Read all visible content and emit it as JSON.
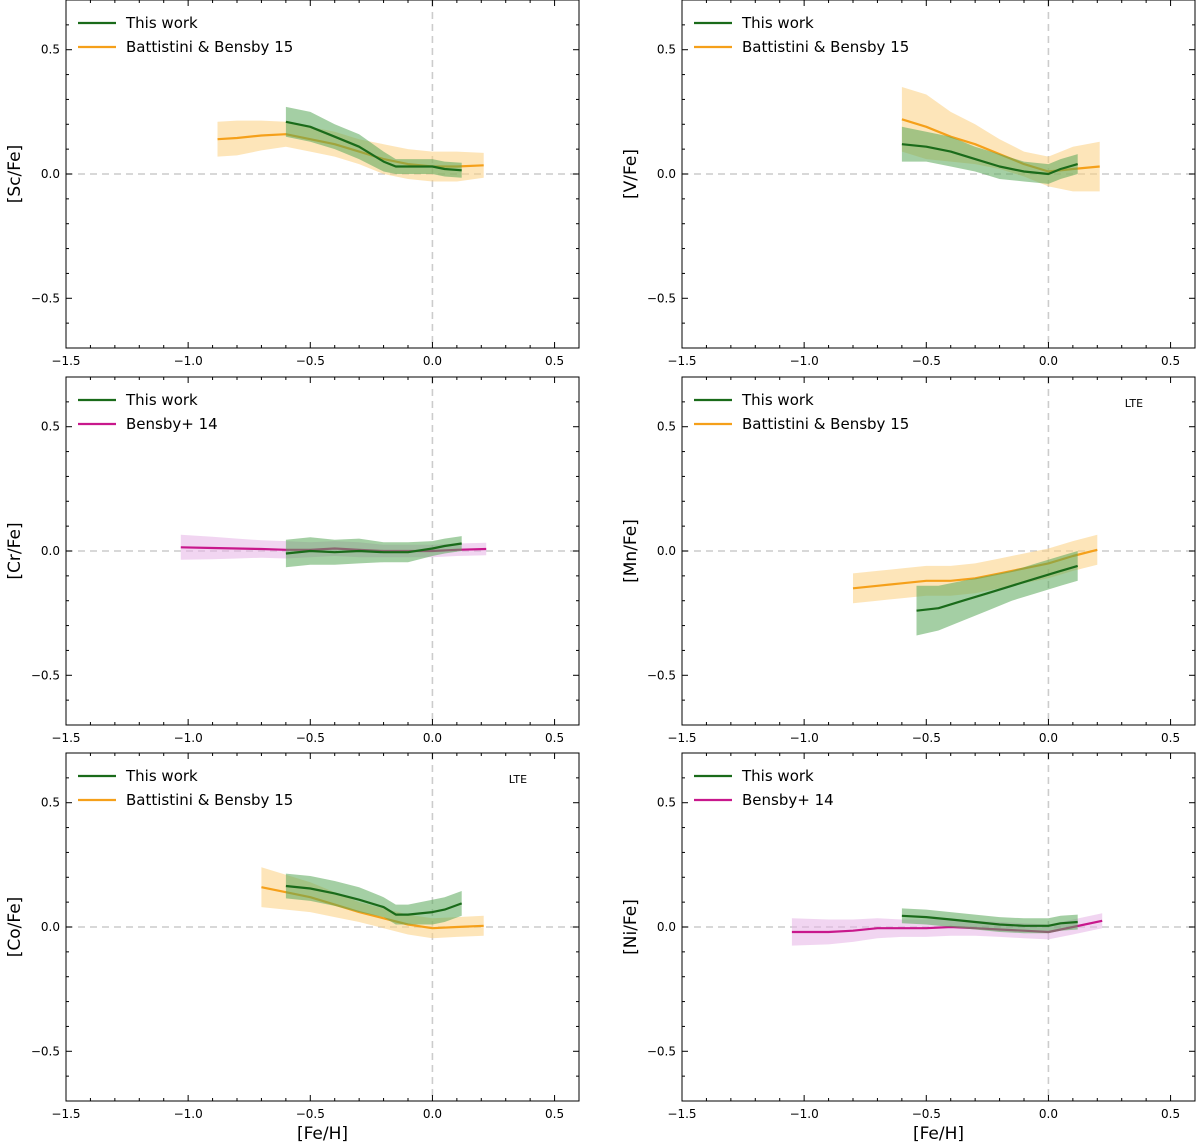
{
  "colors": {
    "this_work": "#1a6b1a",
    "this_work_band": "#5aa85a",
    "battistini": "#f5a01a",
    "battistini_band": "#fbcf80",
    "bensby": "#c8188c",
    "bensby_band": "#e6b3e6",
    "reference_line": "#cccccc"
  },
  "chart_data": [
    {
      "type": "line",
      "ylabel": "[Sc/Fe]",
      "xlabel": "",
      "xlim": [
        -1.5,
        0.6
      ],
      "ylim": [
        -0.7,
        0.7
      ],
      "xticks": [
        "−1.5",
        "−1.0",
        "−0.5",
        "0.0",
        "0.5"
      ],
      "yticks": [
        "−0.5",
        "0.0",
        "0.5"
      ],
      "annotation": "",
      "legend": [
        "This work",
        "Battistini & Bensby 15"
      ],
      "series": [
        {
          "name": "This work",
          "key": "this_work",
          "x": [
            -0.6,
            -0.5,
            -0.4,
            -0.3,
            -0.2,
            -0.15,
            -0.1,
            0.0,
            0.05,
            0.12
          ],
          "y": [
            0.21,
            0.19,
            0.15,
            0.11,
            0.05,
            0.03,
            0.03,
            0.03,
            0.02,
            0.015
          ],
          "err": [
            0.06,
            0.06,
            0.05,
            0.05,
            0.04,
            0.03,
            0.03,
            0.03,
            0.03,
            0.03
          ]
        },
        {
          "name": "Battistini & Bensby 15",
          "key": "battistini",
          "x": [
            -0.88,
            -0.8,
            -0.7,
            -0.6,
            -0.5,
            -0.4,
            -0.3,
            -0.2,
            -0.1,
            0.0,
            0.1,
            0.21
          ],
          "y": [
            0.14,
            0.145,
            0.155,
            0.16,
            0.14,
            0.12,
            0.09,
            0.06,
            0.04,
            0.03,
            0.03,
            0.035
          ],
          "err": [
            0.07,
            0.07,
            0.06,
            0.05,
            0.05,
            0.05,
            0.05,
            0.06,
            0.06,
            0.06,
            0.06,
            0.05
          ]
        }
      ]
    },
    {
      "type": "line",
      "ylabel": "[V/Fe]",
      "xlabel": "",
      "xlim": [
        -1.5,
        0.6
      ],
      "ylim": [
        -0.7,
        0.7
      ],
      "xticks": [
        "−1.5",
        "−1.0",
        "−0.5",
        "0.0",
        "0.5"
      ],
      "yticks": [
        "−0.5",
        "0.0",
        "0.5"
      ],
      "annotation": "",
      "legend": [
        "This work",
        "Battistini & Bensby 15"
      ],
      "series": [
        {
          "name": "This work",
          "key": "this_work",
          "x": [
            -0.6,
            -0.5,
            -0.4,
            -0.3,
            -0.2,
            -0.1,
            0.0,
            0.05,
            0.12
          ],
          "y": [
            0.12,
            0.11,
            0.09,
            0.06,
            0.03,
            0.01,
            0.0,
            0.02,
            0.04
          ],
          "err": [
            0.07,
            0.06,
            0.06,
            0.05,
            0.05,
            0.04,
            0.04,
            0.04,
            0.04
          ]
        },
        {
          "name": "Battistini & Bensby 15",
          "key": "battistini",
          "x": [
            -0.6,
            -0.5,
            -0.4,
            -0.3,
            -0.2,
            -0.1,
            0.0,
            0.1,
            0.21
          ],
          "y": [
            0.22,
            0.19,
            0.15,
            0.12,
            0.08,
            0.04,
            0.01,
            0.02,
            0.03
          ],
          "err": [
            0.13,
            0.13,
            0.1,
            0.08,
            0.06,
            0.05,
            0.06,
            0.09,
            0.1
          ]
        }
      ]
    },
    {
      "type": "line",
      "ylabel": "[Cr/Fe]",
      "xlabel": "",
      "xlim": [
        -1.5,
        0.6
      ],
      "ylim": [
        -0.7,
        0.7
      ],
      "xticks": [
        "−1.5",
        "−1.0",
        "−0.5",
        "0.0",
        "0.5"
      ],
      "yticks": [
        "−0.5",
        "0.0",
        "0.5"
      ],
      "annotation": "",
      "legend": [
        "This work",
        "Bensby+ 14"
      ],
      "series": [
        {
          "name": "This work",
          "key": "this_work",
          "x": [
            -0.6,
            -0.5,
            -0.4,
            -0.3,
            -0.2,
            -0.1,
            0.0,
            0.05,
            0.12
          ],
          "y": [
            -0.01,
            0.0,
            -0.005,
            0.0,
            -0.005,
            -0.005,
            0.01,
            0.02,
            0.03
          ],
          "err": [
            0.055,
            0.055,
            0.05,
            0.05,
            0.04,
            0.04,
            0.03,
            0.03,
            0.03
          ]
        },
        {
          "name": "Bensby+ 14",
          "key": "bensby",
          "x": [
            -1.03,
            -0.9,
            -0.8,
            -0.7,
            -0.6,
            -0.5,
            -0.4,
            -0.3,
            -0.2,
            -0.1,
            0.0,
            0.1,
            0.22
          ],
          "y": [
            0.015,
            0.012,
            0.01,
            0.008,
            0.005,
            0.005,
            0.01,
            0.005,
            0.0,
            0.0,
            0.0,
            0.005,
            0.008
          ],
          "err": [
            0.05,
            0.045,
            0.04,
            0.035,
            0.035,
            0.03,
            0.03,
            0.03,
            0.025,
            0.025,
            0.025,
            0.025,
            0.025
          ]
        }
      ]
    },
    {
      "type": "line",
      "ylabel": "[Mn/Fe]",
      "xlabel": "",
      "xlim": [
        -1.5,
        0.6
      ],
      "ylim": [
        -0.7,
        0.7
      ],
      "xticks": [
        "−1.5",
        "−1.0",
        "−0.5",
        "0.0",
        "0.5"
      ],
      "yticks": [
        "−0.5",
        "0.0",
        "0.5"
      ],
      "annotation": "LTE",
      "legend": [
        "This work",
        "Battistini & Bensby 15"
      ],
      "series": [
        {
          "name": "This work",
          "key": "this_work",
          "x": [
            -0.54,
            -0.45,
            -0.35,
            -0.25,
            -0.15,
            -0.05,
            0.05,
            0.12
          ],
          "y": [
            -0.24,
            -0.23,
            -0.2,
            -0.17,
            -0.14,
            -0.11,
            -0.08,
            -0.06
          ],
          "err": [
            0.1,
            0.09,
            0.08,
            0.07,
            0.06,
            0.06,
            0.06,
            0.06
          ]
        },
        {
          "name": "Battistini & Bensby 15",
          "key": "battistini",
          "x": [
            -0.8,
            -0.7,
            -0.6,
            -0.5,
            -0.4,
            -0.3,
            -0.2,
            -0.1,
            0.0,
            0.1,
            0.2
          ],
          "y": [
            -0.15,
            -0.14,
            -0.13,
            -0.12,
            -0.12,
            -0.11,
            -0.09,
            -0.07,
            -0.05,
            -0.02,
            0.005
          ],
          "err": [
            0.06,
            0.06,
            0.06,
            0.06,
            0.06,
            0.06,
            0.06,
            0.06,
            0.06,
            0.06,
            0.06
          ]
        }
      ]
    },
    {
      "type": "line",
      "ylabel": "[Co/Fe]",
      "xlabel": "[Fe/H]",
      "xlim": [
        -1.5,
        0.6
      ],
      "ylim": [
        -0.7,
        0.7
      ],
      "xticks": [
        "−1.5",
        "−1.0",
        "−0.5",
        "0.0",
        "0.5"
      ],
      "yticks": [
        "−0.5",
        "0.0",
        "0.5"
      ],
      "annotation": "LTE",
      "legend": [
        "This work",
        "Battistini & Bensby 15"
      ],
      "series": [
        {
          "name": "This work",
          "key": "this_work",
          "x": [
            -0.6,
            -0.5,
            -0.4,
            -0.3,
            -0.2,
            -0.15,
            -0.1,
            0.0,
            0.05,
            0.12
          ],
          "y": [
            0.165,
            0.155,
            0.135,
            0.11,
            0.08,
            0.05,
            0.05,
            0.06,
            0.07,
            0.095
          ],
          "err": [
            0.05,
            0.05,
            0.05,
            0.05,
            0.04,
            0.04,
            0.04,
            0.05,
            0.05,
            0.05
          ]
        },
        {
          "name": "Battistini & Bensby 15",
          "key": "battistini",
          "x": [
            -0.7,
            -0.6,
            -0.5,
            -0.4,
            -0.3,
            -0.2,
            -0.1,
            0.0,
            0.1,
            0.21
          ],
          "y": [
            0.16,
            0.14,
            0.12,
            0.09,
            0.06,
            0.035,
            0.01,
            -0.005,
            0.0,
            0.005
          ],
          "err": [
            0.08,
            0.07,
            0.06,
            0.05,
            0.04,
            0.04,
            0.04,
            0.04,
            0.04,
            0.04
          ]
        }
      ]
    },
    {
      "type": "line",
      "ylabel": "[Ni/Fe]",
      "xlabel": "[Fe/H]",
      "xlim": [
        -1.5,
        0.6
      ],
      "ylim": [
        -0.7,
        0.7
      ],
      "xticks": [
        "−1.5",
        "−1.0",
        "−0.5",
        "0.0",
        "0.5"
      ],
      "yticks": [
        "−0.5",
        "0.0",
        "0.5"
      ],
      "annotation": "",
      "legend": [
        "This work",
        "Bensby+ 14"
      ],
      "series": [
        {
          "name": "This work",
          "key": "this_work",
          "x": [
            -0.6,
            -0.5,
            -0.4,
            -0.3,
            -0.2,
            -0.1,
            0.0,
            0.05,
            0.12
          ],
          "y": [
            0.045,
            0.04,
            0.03,
            0.02,
            0.01,
            0.005,
            0.005,
            0.015,
            0.02
          ],
          "err": [
            0.03,
            0.03,
            0.03,
            0.03,
            0.03,
            0.03,
            0.03,
            0.03,
            0.03
          ]
        },
        {
          "name": "Bensby+ 14",
          "key": "bensby",
          "x": [
            -1.05,
            -0.9,
            -0.8,
            -0.7,
            -0.6,
            -0.5,
            -0.4,
            -0.3,
            -0.2,
            -0.1,
            0.0,
            0.1,
            0.22
          ],
          "y": [
            -0.02,
            -0.02,
            -0.015,
            -0.005,
            -0.005,
            -0.005,
            0.0,
            -0.005,
            -0.01,
            -0.015,
            -0.02,
            0.0,
            0.025
          ],
          "err": [
            0.055,
            0.05,
            0.045,
            0.04,
            0.035,
            0.035,
            0.035,
            0.03,
            0.03,
            0.03,
            0.03,
            0.03,
            0.03
          ]
        }
      ]
    }
  ]
}
